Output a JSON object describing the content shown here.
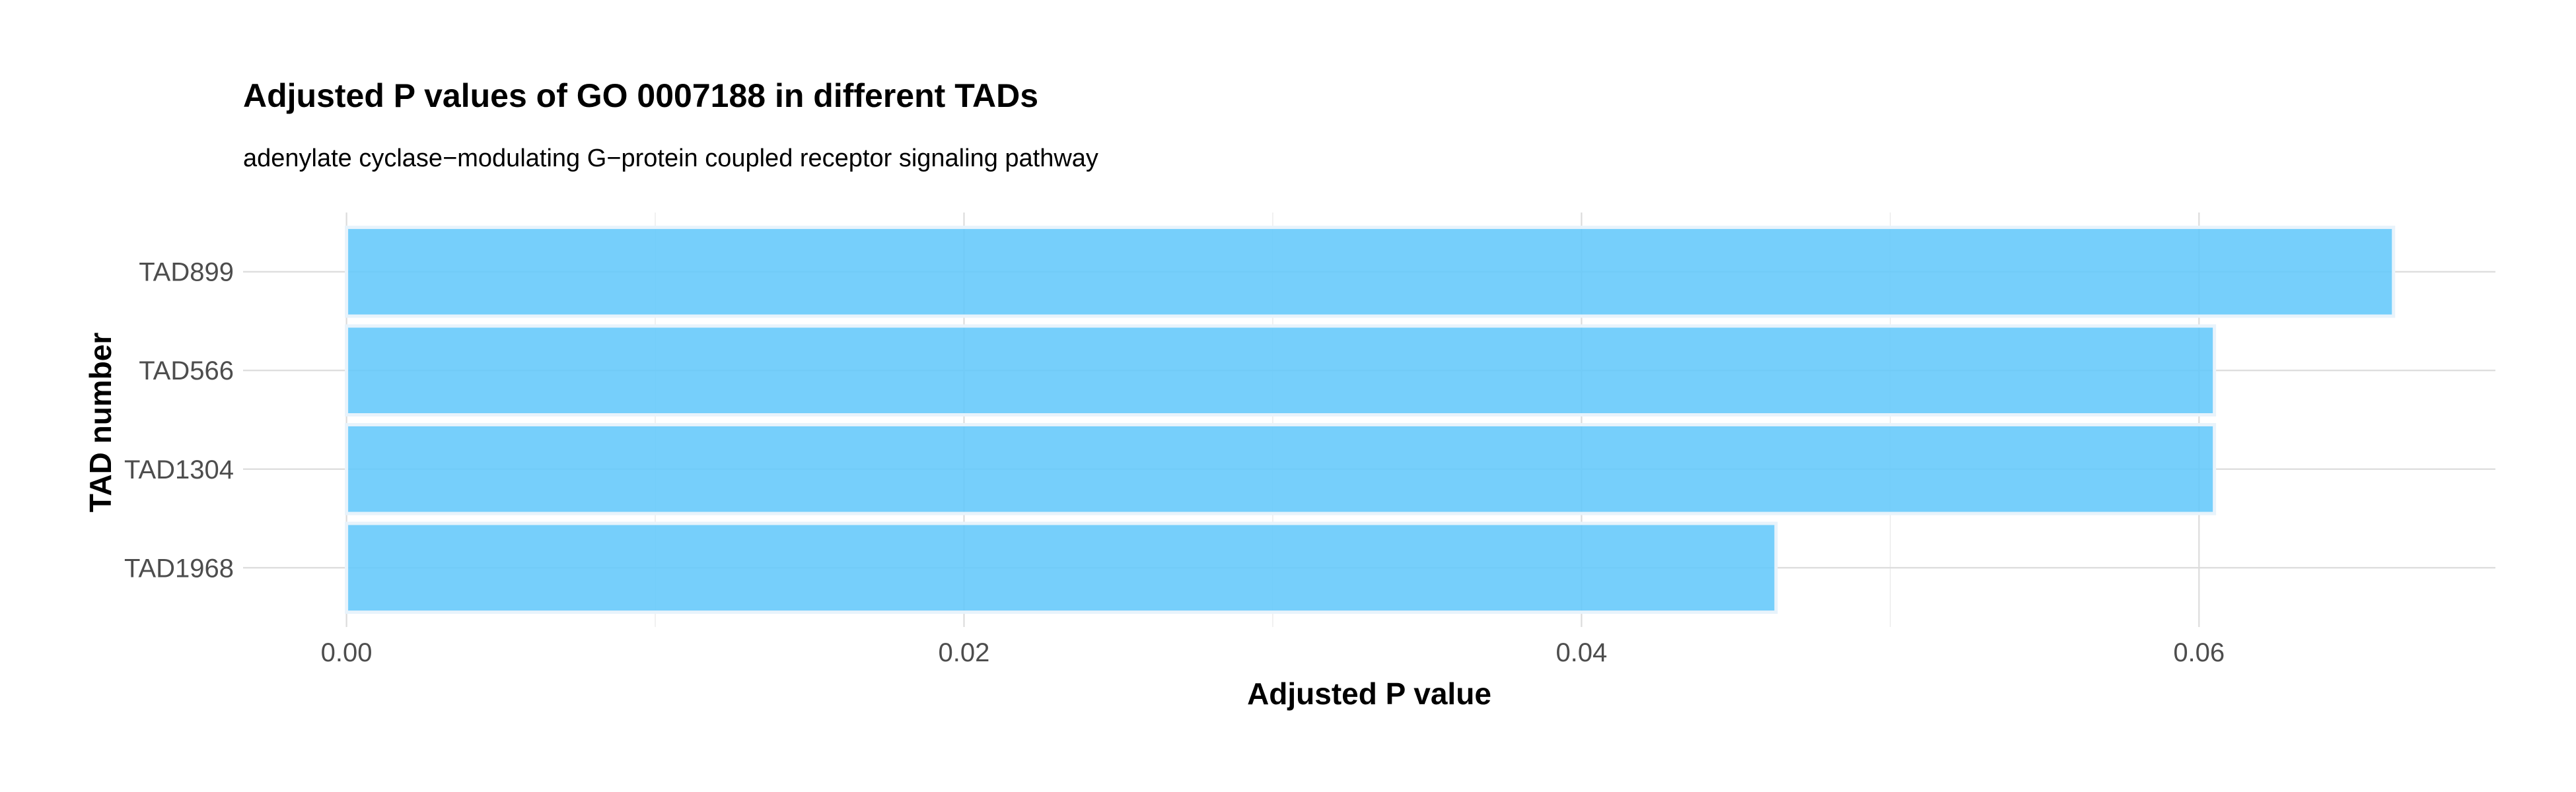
{
  "chart_data": {
    "type": "bar",
    "orientation": "horizontal",
    "title": "Adjusted P values of GO 0007188 in different TADs",
    "subtitle": "adenylate cyclase−modulating G−protein coupled receptor signaling pathway",
    "xlabel": "Adjusted P value",
    "ylabel": "TAD number",
    "categories": [
      "TAD899",
      "TAD566",
      "TAD1304",
      "TAD1968"
    ],
    "values": [
      0.0663,
      0.0605,
      0.0605,
      0.0463
    ],
    "xlim": [
      -0.00335,
      0.0696
    ],
    "x_ticks": [
      0.0,
      0.02,
      0.04,
      0.06
    ],
    "x_tick_labels": [
      "0.00",
      "0.02",
      "0.04",
      "0.06"
    ],
    "x_minor_ticks": [
      0.01,
      0.03,
      0.05
    ],
    "grid": true,
    "bar_color": "#63c8fb",
    "bar_outline_color": "#e8f3fb"
  }
}
